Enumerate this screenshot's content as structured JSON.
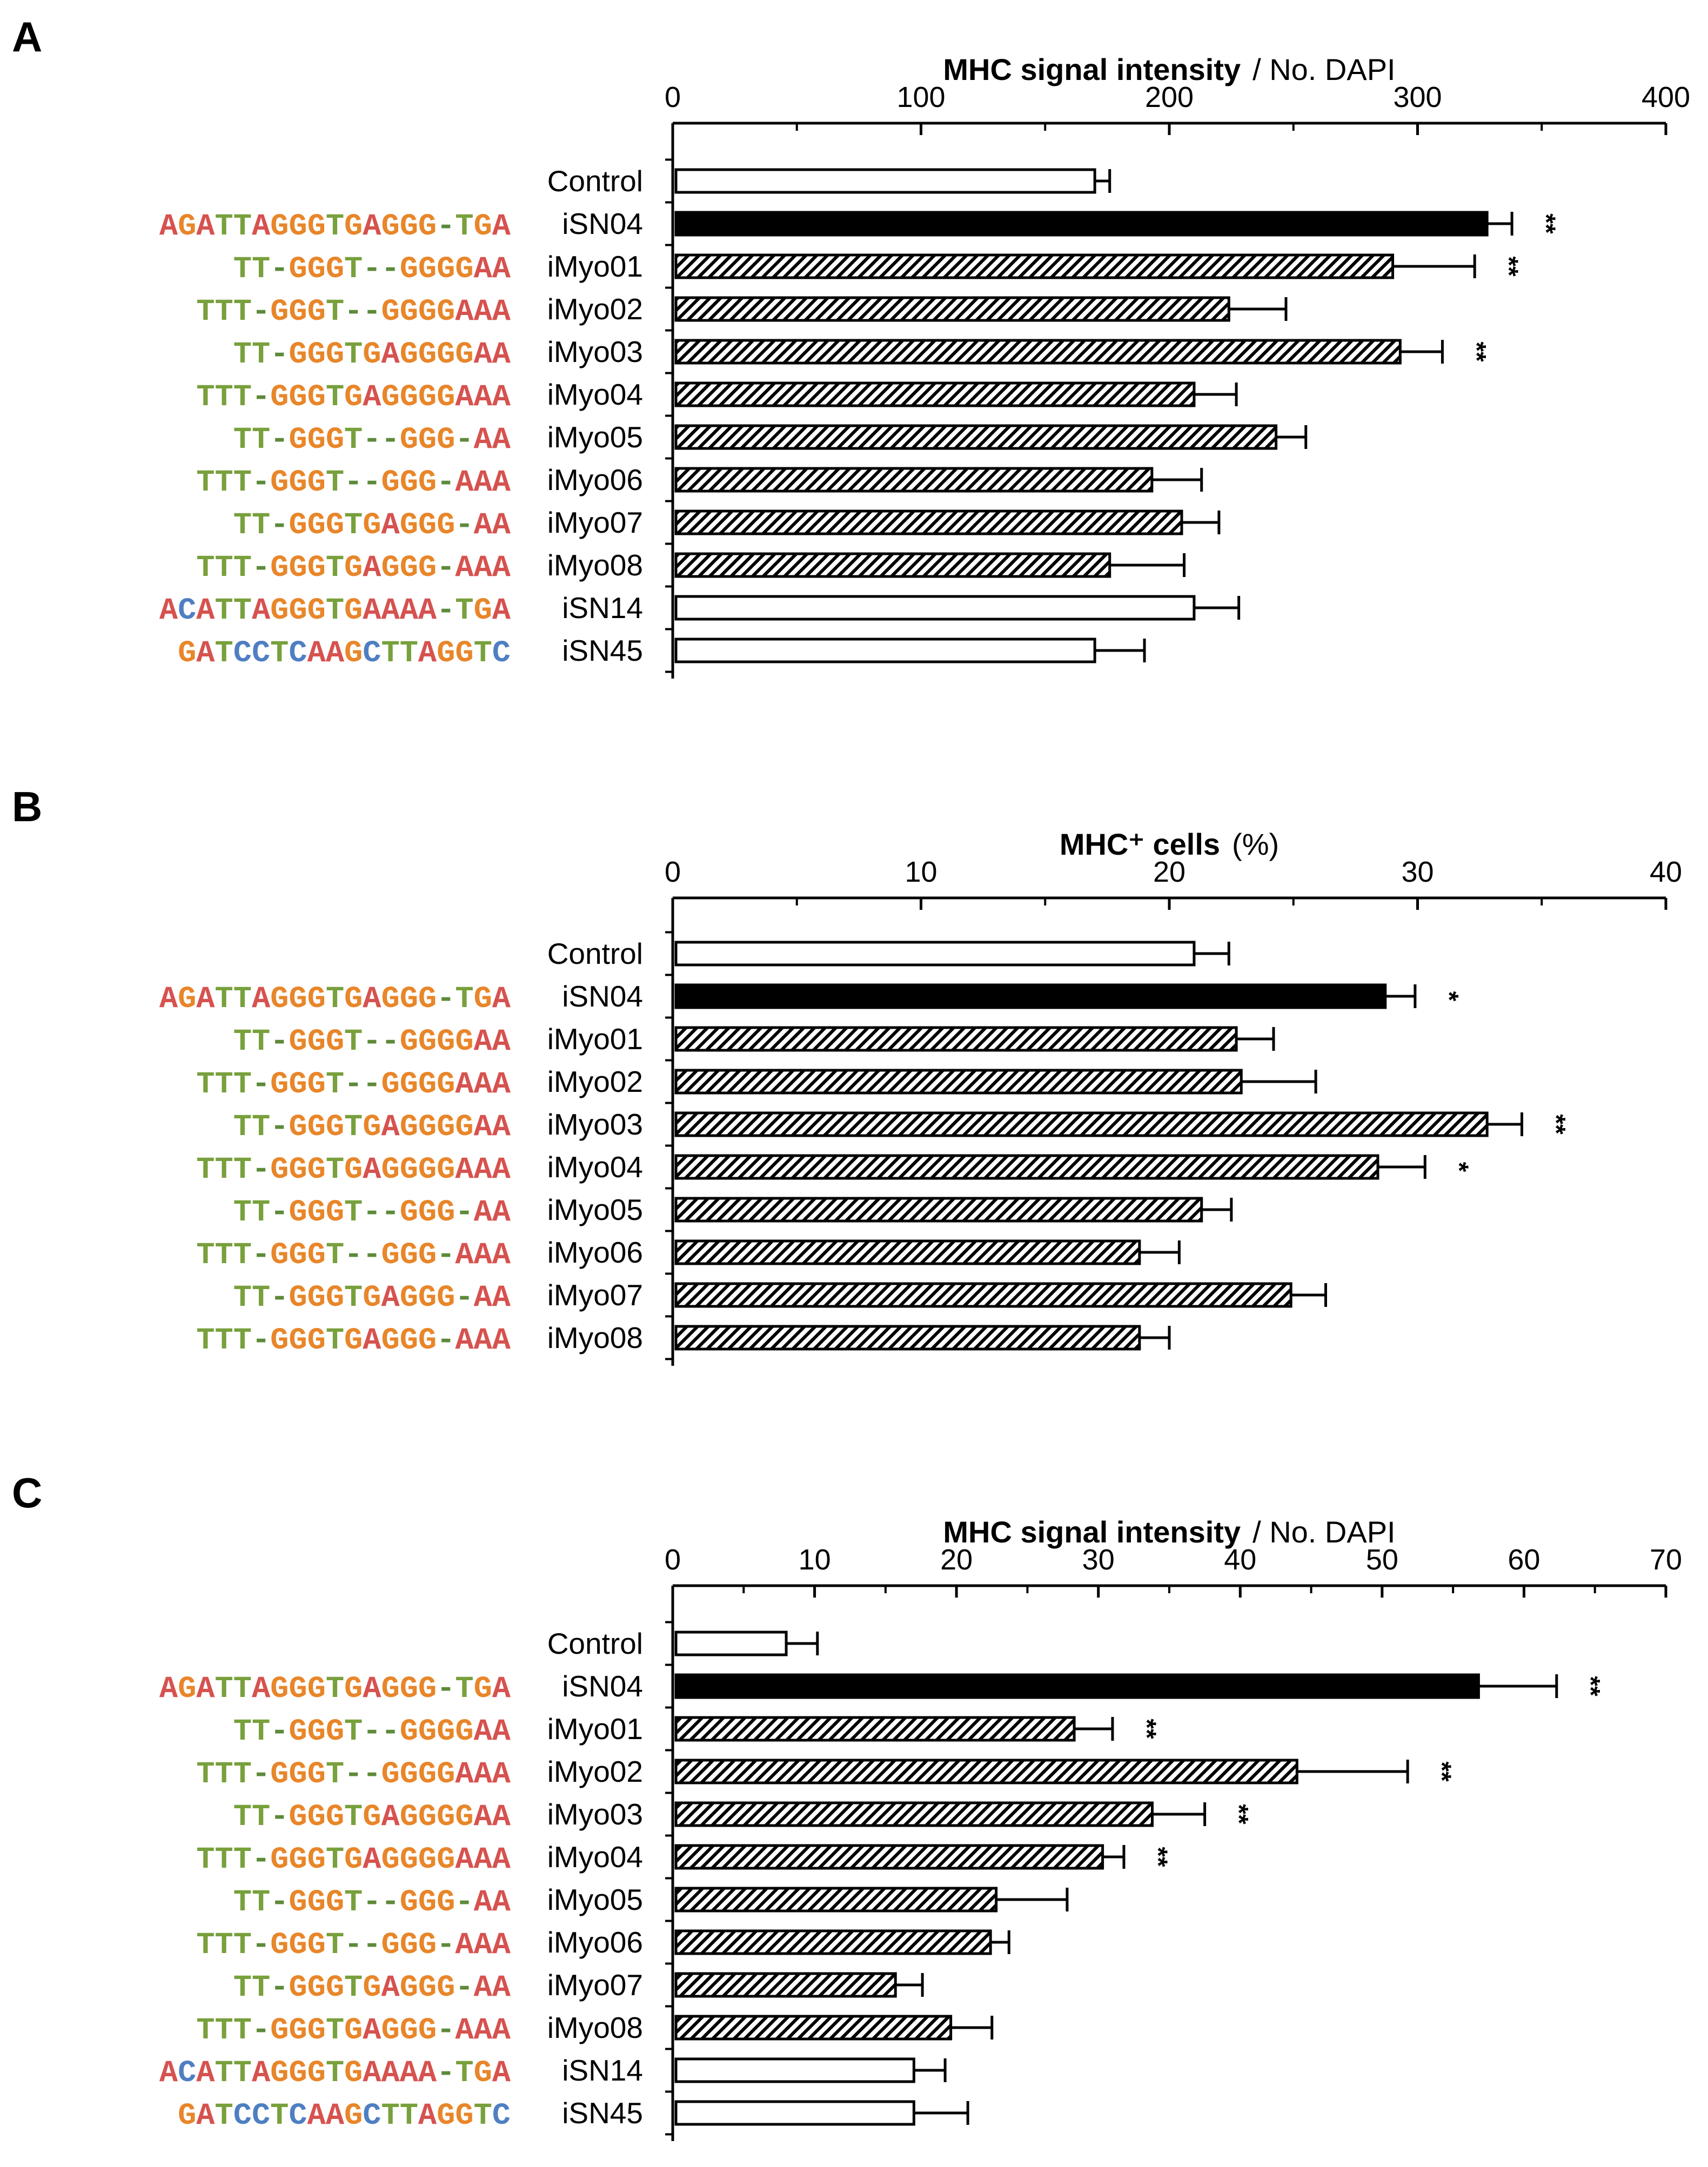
{
  "colors": {
    "A": "#d6524f",
    "C": "#4f7fc2",
    "G": "#e8862a",
    "T": "#78a03c",
    "-": "#5d8a3a",
    "bar_outline": "#000000",
    "bar_solid": "#000000",
    "bar_open": "#ffffff"
  },
  "chart_data": [
    {
      "panel": "A",
      "type": "bar",
      "orientation": "horizontal",
      "title_bold": "MHC signal intensity",
      "title_rest": "/ No. DAPI",
      "xlim": [
        0,
        400
      ],
      "ticks": [
        "0",
        "100",
        "200",
        "300",
        "400"
      ],
      "tick_values": [
        0,
        100,
        200,
        300,
        400
      ],
      "categories": [
        "Control",
        "iSN04",
        "iMyo01",
        "iMyo02",
        "iMyo03",
        "iMyo04",
        "iMyo05",
        "iMyo06",
        "iMyo07",
        "iMyo08",
        "iSN14",
        "iSN45"
      ],
      "sequences": [
        "",
        "AGATTAGGGTGAGGG-TGA",
        "TT-GGGT--GGGGAA",
        "TTT-GGGT--GGGGAAA",
        "TT-GGGTGAGGGGAA",
        "TTT-GGGTGAGGGGAAA",
        "TT-GGGT--GGG-AA",
        "TTT-GGGT--GGG-AAA",
        "TT-GGGTGAGGG-AA",
        "TTT-GGGTGAGGG-AAA",
        "ACATTAGGGTGAAAA-TGA",
        "GATCCTCAAGCTTAGGTC"
      ],
      "values": [
        170,
        328,
        290,
        224,
        293,
        210,
        243,
        193,
        205,
        176,
        210,
        170
      ],
      "errors": [
        6,
        10,
        33,
        23,
        17,
        17,
        12,
        20,
        15,
        30,
        18,
        20
      ],
      "fills": [
        "open",
        "solid",
        "hatch",
        "hatch",
        "hatch",
        "hatch",
        "hatch",
        "hatch",
        "hatch",
        "hatch",
        "open",
        "open"
      ],
      "significance": [
        "",
        "**",
        "**",
        "",
        "**",
        "",
        "",
        "",
        "",
        "",
        "",
        ""
      ]
    },
    {
      "panel": "B",
      "type": "bar",
      "orientation": "horizontal",
      "title_bold": "MHC⁺ cells",
      "title_rest": "(%)",
      "xlim": [
        0,
        40
      ],
      "ticks": [
        "0",
        "10",
        "20",
        "30",
        "40"
      ],
      "tick_values": [
        0,
        10,
        20,
        30,
        40
      ],
      "categories": [
        "Control",
        "iSN04",
        "iMyo01",
        "iMyo02",
        "iMyo03",
        "iMyo04",
        "iMyo05",
        "iMyo06",
        "iMyo07",
        "iMyo08"
      ],
      "sequences": [
        "",
        "AGATTAGGGTGAGGG-TGA",
        "TT-GGGT--GGGGAA",
        "TTT-GGGT--GGGGAAA",
        "TT-GGGTGAGGGGAA",
        "TTT-GGGTGAGGGGAAA",
        "TT-GGGT--GGG-AA",
        "TTT-GGGT--GGG-AAA",
        "TT-GGGTGAGGG-AA",
        "TTT-GGGTGAGGG-AAA"
      ],
      "values": [
        21.0,
        28.7,
        22.7,
        22.9,
        32.8,
        28.4,
        21.3,
        18.8,
        24.9,
        18.8
      ],
      "errors": [
        1.4,
        1.2,
        1.5,
        3.0,
        1.4,
        1.9,
        1.2,
        1.6,
        1.4,
        1.2
      ],
      "fills": [
        "open",
        "solid",
        "hatch",
        "hatch",
        "hatch",
        "hatch",
        "hatch",
        "hatch",
        "hatch",
        "hatch"
      ],
      "significance": [
        "",
        "*",
        "",
        "",
        "**",
        "*",
        "",
        "",
        "",
        ""
      ]
    },
    {
      "panel": "C",
      "type": "bar",
      "orientation": "horizontal",
      "title_bold": "MHC signal intensity",
      "title_rest": "/ No. DAPI",
      "xlim": [
        0,
        70
      ],
      "ticks": [
        "0",
        "10",
        "20",
        "30",
        "40",
        "50",
        "60",
        "70"
      ],
      "tick_values": [
        0,
        10,
        20,
        30,
        40,
        50,
        60,
        70
      ],
      "categories": [
        "Control",
        "iSN04",
        "iMyo01",
        "iMyo02",
        "iMyo03",
        "iMyo04",
        "iMyo05",
        "iMyo06",
        "iMyo07",
        "iMyo08",
        "iSN14",
        "iSN45"
      ],
      "sequences": [
        "",
        "AGATTAGGGTGAGGG-TGA",
        "TT-GGGT--GGGGAA",
        "TTT-GGGT--GGGGAAA",
        "TT-GGGTGAGGGGAA",
        "TTT-GGGTGAGGGGAAA",
        "TT-GGGT--GGG-AA",
        "TTT-GGGT--GGG-AAA",
        "TT-GGGTGAGGG-AA",
        "TTT-GGGTGAGGG-AAA",
        "ACATTAGGGTGAAAA-TGA",
        "GATCCTCAAGCTTAGGTC"
      ],
      "values": [
        8.0,
        56.8,
        28.3,
        44.0,
        33.8,
        30.3,
        22.8,
        22.4,
        15.7,
        19.6,
        17.0,
        17.0
      ],
      "errors": [
        2.2,
        5.5,
        2.7,
        7.8,
        3.7,
        1.5,
        5.0,
        1.3,
        1.9,
        2.9,
        2.2,
        3.8
      ],
      "fills": [
        "open",
        "solid",
        "hatch",
        "hatch",
        "hatch",
        "hatch",
        "hatch",
        "hatch",
        "hatch",
        "hatch",
        "open",
        "open"
      ],
      "significance": [
        "",
        "**",
        "**",
        "**",
        "**",
        "**",
        "",
        "",
        "",
        "",
        "",
        ""
      ]
    }
  ]
}
